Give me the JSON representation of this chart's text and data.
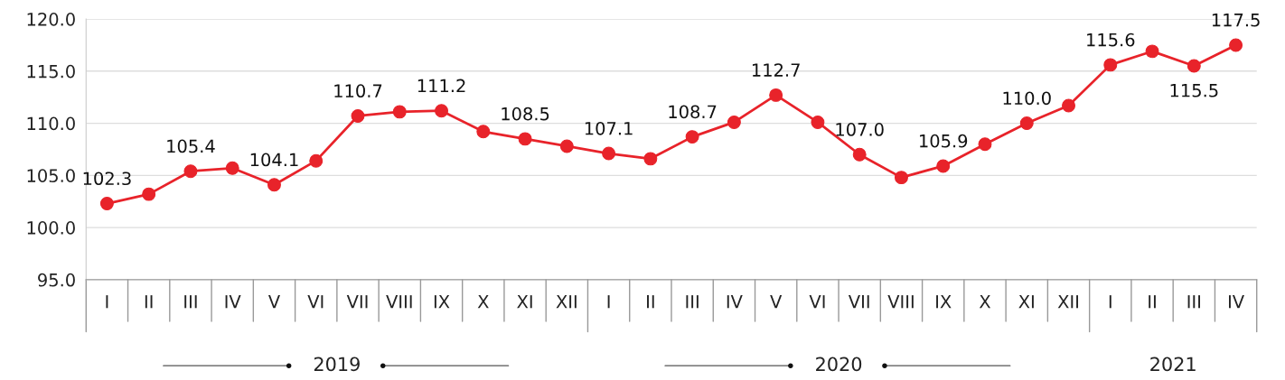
{
  "chart_data": {
    "type": "line",
    "categories": [
      "I",
      "II",
      "III",
      "IV",
      "V",
      "VI",
      "VII",
      "VIII",
      "IX",
      "X",
      "XI",
      "XII",
      "I",
      "II",
      "III",
      "IV",
      "V",
      "VI",
      "VII",
      "VIII",
      "IX",
      "X",
      "XI",
      "XII",
      "I",
      "II",
      "III",
      "IV"
    ],
    "series": [
      {
        "color": "#e8232a",
        "values": [
          102.3,
          103.2,
          105.4,
          105.7,
          104.1,
          106.4,
          110.7,
          111.1,
          111.2,
          109.2,
          108.5,
          107.8,
          107.1,
          106.6,
          108.7,
          110.1,
          112.7,
          110.1,
          107.0,
          104.8,
          105.9,
          108.0,
          110.0,
          111.7,
          115.6,
          116.9,
          115.5,
          117.5
        ],
        "value_labels": [
          "102.3",
          null,
          "105.4",
          null,
          "104.1",
          null,
          "110.7",
          null,
          "111.2",
          null,
          "108.5",
          null,
          "107.1",
          null,
          "108.7",
          null,
          "112.7",
          null,
          "107.0",
          null,
          "105.9",
          null,
          "110.0",
          null,
          "115.6",
          null,
          "115.5",
          "117.5"
        ]
      }
    ],
    "ylim": [
      95,
      120
    ],
    "yticks": [
      {
        "value": 95,
        "label": "95.0"
      },
      {
        "value": 100,
        "label": "100.0"
      },
      {
        "value": 105,
        "label": "105.0"
      },
      {
        "value": 110,
        "label": "110.0"
      },
      {
        "value": 115,
        "label": "115.0"
      },
      {
        "value": 120,
        "label": "120.0"
      }
    ],
    "annotations": [
      "2019",
      "2020",
      "2021"
    ],
    "grid": "y",
    "marker": "circle",
    "line_style": "solid"
  }
}
